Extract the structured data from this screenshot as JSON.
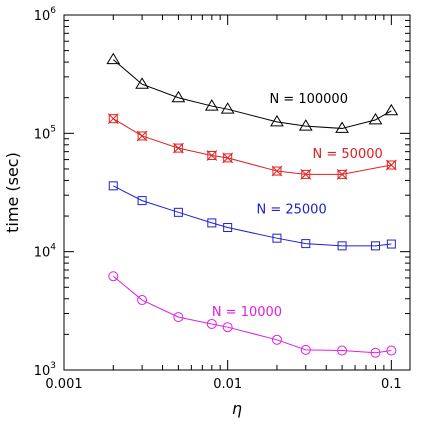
{
  "chart_data": {
    "type": "line",
    "xlabel": "η",
    "ylabel": "time (sec)",
    "xscale": "log",
    "yscale": "log",
    "xlim": [
      0.001,
      0.13
    ],
    "ylim": [
      1000,
      1000000
    ],
    "x_ticks": [
      {
        "value": 0.001,
        "label": "0.001"
      },
      {
        "value": 0.01,
        "label": "0.01"
      },
      {
        "value": 0.1,
        "label": "0.1"
      }
    ],
    "y_ticks": [
      {
        "value": 1000,
        "base": "10",
        "exp": "3"
      },
      {
        "value": 10000,
        "base": "10",
        "exp": "4"
      },
      {
        "value": 100000,
        "base": "10",
        "exp": "5"
      },
      {
        "value": 1000000,
        "base": "10",
        "exp": "6"
      }
    ],
    "grid": false,
    "series": [
      {
        "name": "N = 100000",
        "color": "#000000",
        "marker": "triangle",
        "x": [
          0.002,
          0.003,
          0.005,
          0.008,
          0.01,
          0.02,
          0.03,
          0.05,
          0.08,
          0.1
        ],
        "y": [
          420000,
          260000,
          200000,
          170000,
          160000,
          125000,
          115000,
          110000,
          130000,
          155000
        ]
      },
      {
        "name": "N = 50000",
        "color": "#e02020",
        "marker": "star-square",
        "x": [
          0.002,
          0.003,
          0.005,
          0.008,
          0.01,
          0.02,
          0.03,
          0.05,
          0.1
        ],
        "y": [
          133000,
          95000,
          75000,
          65000,
          62000,
          48000,
          45000,
          45000,
          54000
        ]
      },
      {
        "name": "N = 25000",
        "color": "#2020d0",
        "marker": "square",
        "x": [
          0.002,
          0.003,
          0.005,
          0.008,
          0.01,
          0.02,
          0.03,
          0.05,
          0.08,
          0.1
        ],
        "y": [
          36000,
          27000,
          21500,
          17500,
          16000,
          13000,
          11700,
          11200,
          11200,
          11600
        ]
      },
      {
        "name": "N = 10000",
        "color": "#e020e0",
        "marker": "circle",
        "x": [
          0.002,
          0.003,
          0.005,
          0.008,
          0.01,
          0.02,
          0.03,
          0.05,
          0.08,
          0.1
        ],
        "y": [
          6200,
          3900,
          2800,
          2450,
          2300,
          1800,
          1480,
          1460,
          1400,
          1460
        ]
      }
    ]
  }
}
